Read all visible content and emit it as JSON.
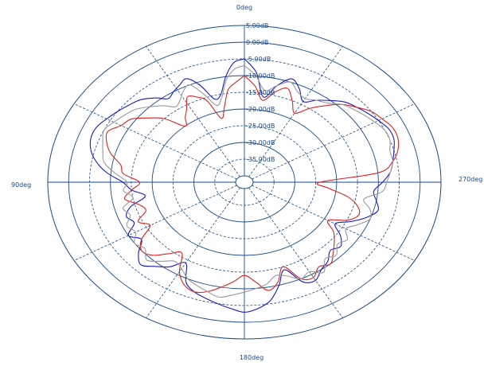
{
  "chart_data": {
    "type": "polar-line",
    "angle_labels": [
      {
        "angle": 0,
        "text": "0deg"
      },
      {
        "angle": 90,
        "text": "90deg"
      },
      {
        "angle": 180,
        "text": "180deg"
      },
      {
        "angle": 270,
        "text": "270deg"
      }
    ],
    "angle_direction": "counterclockwise",
    "radial_unit": "dB",
    "rlim": [
      -40,
      5
    ],
    "ring_values": [
      5,
      0,
      -5,
      -10,
      -15,
      -20,
      -25,
      -30,
      -35
    ],
    "ring_labels": [
      "5.00dB",
      "0.00dB",
      "-5.00dB",
      "-10.00dB",
      "-15.00dB",
      "-20.00dB",
      "-25.00dB",
      "-30.00dB",
      "-35.00dB"
    ],
    "spoke_interval_deg": 30,
    "grid": true,
    "colors": {
      "blue": "#1a1acc",
      "red": "#dd2222",
      "gray": "#9a9a9a",
      "grid": "#1a4a8a"
    },
    "series": [
      {
        "color": "blue",
        "points": [
          [
            0,
            -5
          ],
          [
            4,
            -6
          ],
          [
            8,
            -10
          ],
          [
            12,
            -15
          ],
          [
            16,
            -16
          ],
          [
            20,
            -11
          ],
          [
            24,
            -8
          ],
          [
            28,
            -9
          ],
          [
            32,
            -10
          ],
          [
            36,
            -11
          ],
          [
            40,
            -9
          ],
          [
            45,
            -7
          ],
          [
            50,
            -6
          ],
          [
            55,
            -5
          ],
          [
            60,
            -4
          ],
          [
            65,
            -3
          ],
          [
            70,
            -3
          ],
          [
            75,
            -4
          ],
          [
            80,
            -6
          ],
          [
            85,
            -9
          ],
          [
            90,
            -13
          ],
          [
            95,
            -15
          ],
          [
            100,
            -18
          ],
          [
            105,
            -14
          ],
          [
            110,
            -12
          ],
          [
            115,
            -13
          ],
          [
            120,
            -10
          ],
          [
            125,
            -12
          ],
          [
            130,
            -9
          ],
          [
            135,
            -7
          ],
          [
            140,
            -9
          ],
          [
            145,
            -11
          ],
          [
            150,
            -14
          ],
          [
            155,
            -9
          ],
          [
            160,
            -7
          ],
          [
            165,
            -6
          ],
          [
            170,
            -5
          ],
          [
            175,
            -4
          ],
          [
            180,
            -3
          ],
          [
            185,
            -4
          ],
          [
            190,
            -6
          ],
          [
            195,
            -10
          ],
          [
            200,
            -14
          ],
          [
            205,
            -9
          ],
          [
            210,
            -8
          ],
          [
            215,
            -10
          ],
          [
            220,
            -11
          ],
          [
            225,
            -13
          ],
          [
            230,
            -12
          ],
          [
            235,
            -14
          ],
          [
            240,
            -17
          ],
          [
            245,
            -14
          ],
          [
            250,
            -11
          ],
          [
            255,
            -9
          ],
          [
            260,
            -10
          ],
          [
            265,
            -11
          ],
          [
            270,
            -9
          ],
          [
            275,
            -7
          ],
          [
            280,
            -6
          ],
          [
            285,
            -5
          ],
          [
            290,
            -4
          ],
          [
            295,
            -4
          ],
          [
            300,
            -5
          ],
          [
            305,
            -6
          ],
          [
            310,
            -7
          ],
          [
            315,
            -8
          ],
          [
            320,
            -10
          ],
          [
            325,
            -12
          ],
          [
            330,
            -14
          ],
          [
            335,
            -11
          ],
          [
            340,
            -9
          ],
          [
            345,
            -12
          ],
          [
            350,
            -16
          ],
          [
            355,
            -9
          ],
          [
            360,
            -5
          ]
        ]
      },
      {
        "color": "red",
        "points": [
          [
            0,
            -10
          ],
          [
            4,
            -12
          ],
          [
            8,
            -14
          ],
          [
            12,
            -19
          ],
          [
            16,
            -22
          ],
          [
            20,
            -16
          ],
          [
            24,
            -14
          ],
          [
            28,
            -13
          ],
          [
            32,
            -16
          ],
          [
            36,
            -18
          ],
          [
            40,
            -20
          ],
          [
            45,
            -15
          ],
          [
            50,
            -12
          ],
          [
            55,
            -9
          ],
          [
            60,
            -8
          ],
          [
            65,
            -6
          ],
          [
            70,
            -7
          ],
          [
            75,
            -9
          ],
          [
            80,
            -12
          ],
          [
            85,
            -13
          ],
          [
            90,
            -17
          ],
          [
            95,
            -15
          ],
          [
            100,
            -13
          ],
          [
            105,
            -16
          ],
          [
            110,
            -17
          ],
          [
            115,
            -14
          ],
          [
            120,
            -16
          ],
          [
            125,
            -12
          ],
          [
            130,
            -10
          ],
          [
            135,
            -11
          ],
          [
            140,
            -14
          ],
          [
            145,
            -16
          ],
          [
            150,
            -11
          ],
          [
            155,
            -8
          ],
          [
            160,
            -7
          ],
          [
            165,
            -8
          ],
          [
            170,
            -10
          ],
          [
            175,
            -12
          ],
          [
            180,
            -14
          ],
          [
            185,
            -12
          ],
          [
            190,
            -9
          ],
          [
            195,
            -11
          ],
          [
            200,
            -15
          ],
          [
            205,
            -10
          ],
          [
            210,
            -9
          ],
          [
            215,
            -11
          ],
          [
            220,
            -10
          ],
          [
            225,
            -12
          ],
          [
            230,
            -14
          ],
          [
            235,
            -16
          ],
          [
            240,
            -19
          ],
          [
            245,
            -15
          ],
          [
            250,
            -13
          ],
          [
            255,
            -14
          ],
          [
            260,
            -17
          ],
          [
            265,
            -22
          ],
          [
            270,
            -24
          ],
          [
            275,
            -10
          ],
          [
            280,
            -6
          ],
          [
            285,
            -4
          ],
          [
            290,
            -3
          ],
          [
            295,
            -3
          ],
          [
            300,
            -4
          ],
          [
            305,
            -5
          ],
          [
            310,
            -7
          ],
          [
            315,
            -9
          ],
          [
            320,
            -12
          ],
          [
            325,
            -15
          ],
          [
            330,
            -18
          ],
          [
            335,
            -15
          ],
          [
            340,
            -12
          ],
          [
            345,
            -14
          ],
          [
            350,
            -17
          ],
          [
            355,
            -13
          ],
          [
            360,
            -10
          ]
        ]
      },
      {
        "color": "gray",
        "points": [
          [
            0,
            -7
          ],
          [
            4,
            -8
          ],
          [
            8,
            -11
          ],
          [
            12,
            -16
          ],
          [
            16,
            -18
          ],
          [
            20,
            -14
          ],
          [
            24,
            -10
          ],
          [
            28,
            -11
          ],
          [
            32,
            -13
          ],
          [
            36,
            -14
          ],
          [
            40,
            -12
          ],
          [
            45,
            -10
          ],
          [
            50,
            -8
          ],
          [
            55,
            -7
          ],
          [
            60,
            -6
          ],
          [
            65,
            -5
          ],
          [
            70,
            -6
          ],
          [
            75,
            -7
          ],
          [
            80,
            -8
          ],
          [
            85,
            -11
          ],
          [
            90,
            -14
          ],
          [
            95,
            -13
          ],
          [
            100,
            -15
          ],
          [
            105,
            -12
          ],
          [
            110,
            -13
          ],
          [
            115,
            -11
          ],
          [
            120,
            -12
          ],
          [
            125,
            -10
          ],
          [
            130,
            -11
          ],
          [
            135,
            -9
          ],
          [
            140,
            -11
          ],
          [
            145,
            -13
          ],
          [
            150,
            -12
          ],
          [
            155,
            -10
          ],
          [
            160,
            -9
          ],
          [
            165,
            -8
          ],
          [
            170,
            -7
          ],
          [
            175,
            -8
          ],
          [
            180,
            -9
          ],
          [
            185,
            -10
          ],
          [
            190,
            -11
          ],
          [
            195,
            -13
          ],
          [
            200,
            -12
          ],
          [
            205,
            -10
          ],
          [
            210,
            -11
          ],
          [
            215,
            -9
          ],
          [
            220,
            -12
          ],
          [
            225,
            -11
          ],
          [
            230,
            -13
          ],
          [
            235,
            -12
          ],
          [
            240,
            -14
          ],
          [
            245,
            -12
          ],
          [
            250,
            -10
          ],
          [
            255,
            -11
          ],
          [
            260,
            -13
          ],
          [
            265,
            -9
          ],
          [
            270,
            -8
          ],
          [
            275,
            -7
          ],
          [
            280,
            -6
          ],
          [
            285,
            -6
          ],
          [
            290,
            -5
          ],
          [
            295,
            -5
          ],
          [
            300,
            -6
          ],
          [
            305,
            -7
          ],
          [
            310,
            -8
          ],
          [
            315,
            -9
          ],
          [
            320,
            -11
          ],
          [
            325,
            -12
          ],
          [
            330,
            -13
          ],
          [
            335,
            -12
          ],
          [
            340,
            -10
          ],
          [
            345,
            -12
          ],
          [
            350,
            -14
          ],
          [
            355,
            -10
          ],
          [
            360,
            -7
          ]
        ]
      }
    ]
  }
}
